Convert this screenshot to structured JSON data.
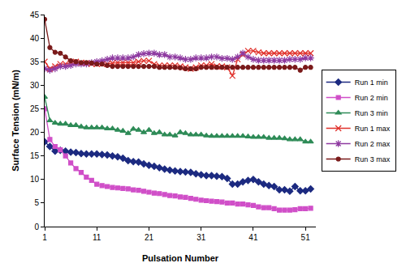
{
  "chart_data": {
    "type": "line",
    "x_label": "Pulsation Number",
    "y_label": "Surface Tension (mN/m)",
    "x": [
      1,
      2,
      3,
      4,
      5,
      6,
      7,
      8,
      9,
      10,
      11,
      12,
      13,
      14,
      15,
      16,
      17,
      18,
      19,
      20,
      21,
      22,
      23,
      24,
      25,
      26,
      27,
      28,
      29,
      30,
      31,
      32,
      33,
      34,
      35,
      36,
      37,
      38,
      39,
      40,
      41,
      42,
      43,
      44,
      45,
      46,
      47,
      48,
      49,
      50,
      51,
      52
    ],
    "xlim": [
      1,
      53
    ],
    "xticks": [
      1,
      11,
      21,
      31,
      41,
      51
    ],
    "ylim": [
      0,
      45
    ],
    "yticks": [
      0,
      5,
      10,
      15,
      20,
      25,
      30,
      35,
      40,
      45
    ],
    "grid": false,
    "legend": "right",
    "series": [
      {
        "name": "Run 1 min",
        "color": "#1c2a80",
        "marker": "diamond",
        "values": [
          18,
          17,
          16,
          16.2,
          16,
          15.8,
          15.7,
          15.5,
          15.4,
          15.4,
          15.4,
          15.3,
          15.2,
          15,
          14.8,
          14.5,
          14,
          13.8,
          13.7,
          13.3,
          13,
          12.8,
          12.5,
          12.2,
          12,
          11.8,
          11.7,
          11.6,
          11.5,
          11.2,
          11,
          10.8,
          10.8,
          10.7,
          10.6,
          10.2,
          9,
          9,
          9.5,
          9.8,
          10,
          9.5,
          9,
          8.7,
          8.5,
          7.8,
          7.8,
          7.5,
          8.5,
          7.6,
          7.6,
          8
        ]
      },
      {
        "name": "Run 2 min",
        "color": "#d04fc8",
        "marker": "square",
        "values": [
          25,
          18.5,
          17,
          16.3,
          15,
          13.5,
          12.3,
          11.5,
          10.5,
          9.8,
          9,
          8.7,
          8.5,
          8.3,
          8.2,
          8.1,
          8,
          7.8,
          7.7,
          7.5,
          7.3,
          7.1,
          7,
          6.8,
          6.6,
          6.5,
          6.3,
          6.2,
          6,
          5.8,
          5.6,
          5.5,
          5.4,
          5.3,
          5.2,
          5,
          5,
          4.8,
          4.8,
          4.6,
          4.5,
          4.2,
          4,
          4,
          3.8,
          3.5,
          3.5,
          3.5,
          3.6,
          3.8,
          3.8,
          3.9
        ]
      },
      {
        "name": "Run 3 min",
        "color": "#2e8b57",
        "marker": "triangle",
        "values": [
          27.5,
          22.5,
          22,
          21.8,
          21.8,
          21.5,
          21.5,
          21.2,
          21,
          21,
          21,
          21,
          20.8,
          20.8,
          20.5,
          20.3,
          19.8,
          20.7,
          20.5,
          20,
          20.5,
          19.8,
          20,
          19.5,
          19.5,
          19.3,
          20,
          19.8,
          19.5,
          19.5,
          19.5,
          19.3,
          19.2,
          19.2,
          19.2,
          19.2,
          19.2,
          19.2,
          19.2,
          19.1,
          19,
          19,
          19,
          18.8,
          18.8,
          18.8,
          18.7,
          18.5,
          18.5,
          18.5,
          18,
          18
        ]
      },
      {
        "name": "Run 1 max",
        "color": "#e0302a",
        "marker": "x",
        "values": [
          35,
          33.5,
          34,
          34.5,
          34.5,
          34.8,
          35,
          34.8,
          34.7,
          34.5,
          34.5,
          34.5,
          34.5,
          34.7,
          34.8,
          34.8,
          34.8,
          34.8,
          35,
          35.2,
          35.2,
          34.5,
          34.2,
          34.2,
          34.2,
          34.2,
          34,
          33.8,
          33.5,
          33.8,
          34.2,
          34.2,
          34.5,
          34,
          34,
          33.8,
          32,
          35.5,
          36.5,
          37.3,
          37.3,
          37,
          36.8,
          36.8,
          36.8,
          36.8,
          36.8,
          36.8,
          36.8,
          36.8,
          36.8,
          36.8
        ]
      },
      {
        "name": "Run 2 max",
        "color": "#8e3aa0",
        "marker": "star",
        "values": [
          33.5,
          33.2,
          33.5,
          34,
          34,
          34.2,
          34.5,
          34.5,
          34.5,
          34.8,
          35,
          35.2,
          35.5,
          35.8,
          35.8,
          35.8,
          35.8,
          36,
          36.5,
          36.7,
          36.8,
          36.8,
          36.5,
          36.5,
          36,
          36,
          35.8,
          35.5,
          35.5,
          35.8,
          35.8,
          35.8,
          36,
          36,
          35.7,
          35.7,
          35.5,
          36,
          36.8,
          36,
          35.5,
          35.3,
          35.3,
          35.3,
          35.3,
          35.3,
          35.3,
          35.5,
          35.5,
          35.5,
          35.8,
          35.8
        ]
      },
      {
        "name": "Run 3 max",
        "color": "#7a1a1a",
        "marker": "circle",
        "values": [
          44,
          38,
          37,
          36.8,
          36,
          35.2,
          35,
          34.8,
          34.8,
          34.7,
          34.5,
          34.5,
          34.2,
          34,
          34,
          34,
          34,
          34,
          34,
          34,
          34,
          34,
          33.8,
          33.8,
          33.8,
          33.8,
          33.7,
          33.5,
          33.5,
          33.5,
          33.8,
          33.8,
          33.8,
          33.8,
          33.8,
          33.8,
          33.8,
          33.8,
          33.8,
          33.8,
          33.8,
          33.8,
          33.8,
          33.8,
          33.8,
          33.8,
          33.8,
          33.8,
          33.8,
          33.2,
          33.8,
          33.8
        ]
      }
    ]
  }
}
